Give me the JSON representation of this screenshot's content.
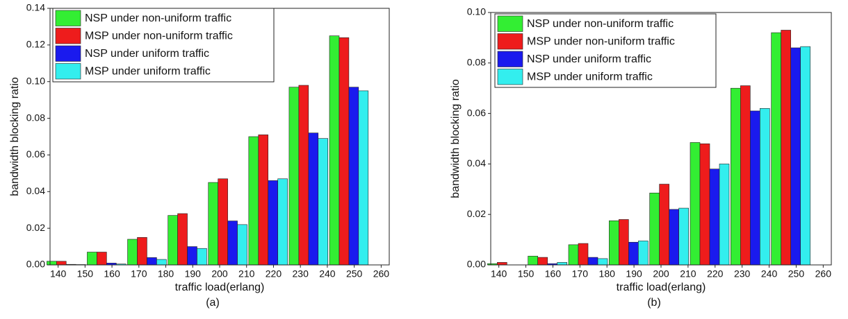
{
  "chart_data": [
    {
      "type": "bar",
      "caption": "(a)",
      "xlabel": "traffic load(erlang)",
      "ylabel": "bandwidth blocking ratio",
      "x": [
        143,
        158,
        173,
        188,
        203,
        218,
        233,
        248
      ],
      "xlim": [
        137,
        263
      ],
      "xticks": [
        140,
        150,
        160,
        170,
        180,
        190,
        200,
        210,
        220,
        230,
        240,
        250,
        260
      ],
      "ylim": [
        0,
        0.14
      ],
      "yticks": [
        {
          "value": 0,
          "label": "0.00"
        },
        {
          "value": 0.02,
          "label": "0.02"
        },
        {
          "value": 0.04,
          "label": "0.04"
        },
        {
          "value": 0.06,
          "label": "0.06"
        },
        {
          "value": 0.08,
          "label": "0.08"
        },
        {
          "value": 0.1,
          "label": "0.10"
        },
        {
          "value": 0.12,
          "label": "0.12"
        },
        {
          "value": 0.14,
          "label": "0.14"
        }
      ],
      "legend": "upper left",
      "series": [
        {
          "name": "NSP under non-uniform traffic",
          "color": "#33ee33",
          "values": [
            0.002,
            0.007,
            0.014,
            0.027,
            0.045,
            0.07,
            0.097,
            0.125
          ]
        },
        {
          "name": "MSP under non-uniform traffic",
          "color": "#ee1c1c",
          "values": [
            0.002,
            0.007,
            0.015,
            0.028,
            0.047,
            0.071,
            0.098,
            0.124
          ]
        },
        {
          "name": "NSP under uniform traffic",
          "color": "#1a1aee",
          "values": [
            0.0003,
            0.001,
            0.004,
            0.01,
            0.024,
            0.046,
            0.072,
            0.097
          ]
        },
        {
          "name": "MSP under uniform traffic",
          "color": "#33eeee",
          "values": [
            0.0002,
            0.0005,
            0.003,
            0.009,
            0.022,
            0.047,
            0.069,
            0.095
          ]
        }
      ]
    },
    {
      "type": "bar",
      "caption": "(b)",
      "xlabel": "traffic load(erlang)",
      "ylabel": "bandwidth blocking ratio",
      "x": [
        143,
        158,
        173,
        188,
        203,
        218,
        233,
        248
      ],
      "xlim": [
        137,
        263
      ],
      "xticks": [
        140,
        150,
        160,
        170,
        180,
        190,
        200,
        210,
        220,
        230,
        240,
        250,
        260
      ],
      "ylim": [
        0,
        0.1
      ],
      "yticks": [
        {
          "value": 0,
          "label": "0.00"
        },
        {
          "value": 0.02,
          "label": "0.02"
        },
        {
          "value": 0.04,
          "label": "0.04"
        },
        {
          "value": 0.06,
          "label": "0.06"
        },
        {
          "value": 0.08,
          "label": "0.08"
        },
        {
          "value": 0.1,
          "label": "0.10"
        }
      ],
      "legend": "upper left",
      "series": [
        {
          "name": "NSP under non-uniform traffic",
          "color": "#33ee33",
          "values": [
            0.0005,
            0.0035,
            0.008,
            0.0175,
            0.0285,
            0.0485,
            0.07,
            0.092
          ]
        },
        {
          "name": "MSP under non-uniform traffic",
          "color": "#ee1c1c",
          "values": [
            0.001,
            0.003,
            0.0085,
            0.018,
            0.032,
            0.048,
            0.071,
            0.093
          ]
        },
        {
          "name": "NSP under uniform traffic",
          "color": "#1a1aee",
          "values": [
            0,
            0.0005,
            0.003,
            0.009,
            0.022,
            0.038,
            0.061,
            0.086
          ]
        },
        {
          "name": "MSP under uniform traffic",
          "color": "#33eeee",
          "values": [
            0,
            0.001,
            0.0025,
            0.0095,
            0.0225,
            0.04,
            0.062,
            0.0865
          ]
        }
      ]
    }
  ]
}
